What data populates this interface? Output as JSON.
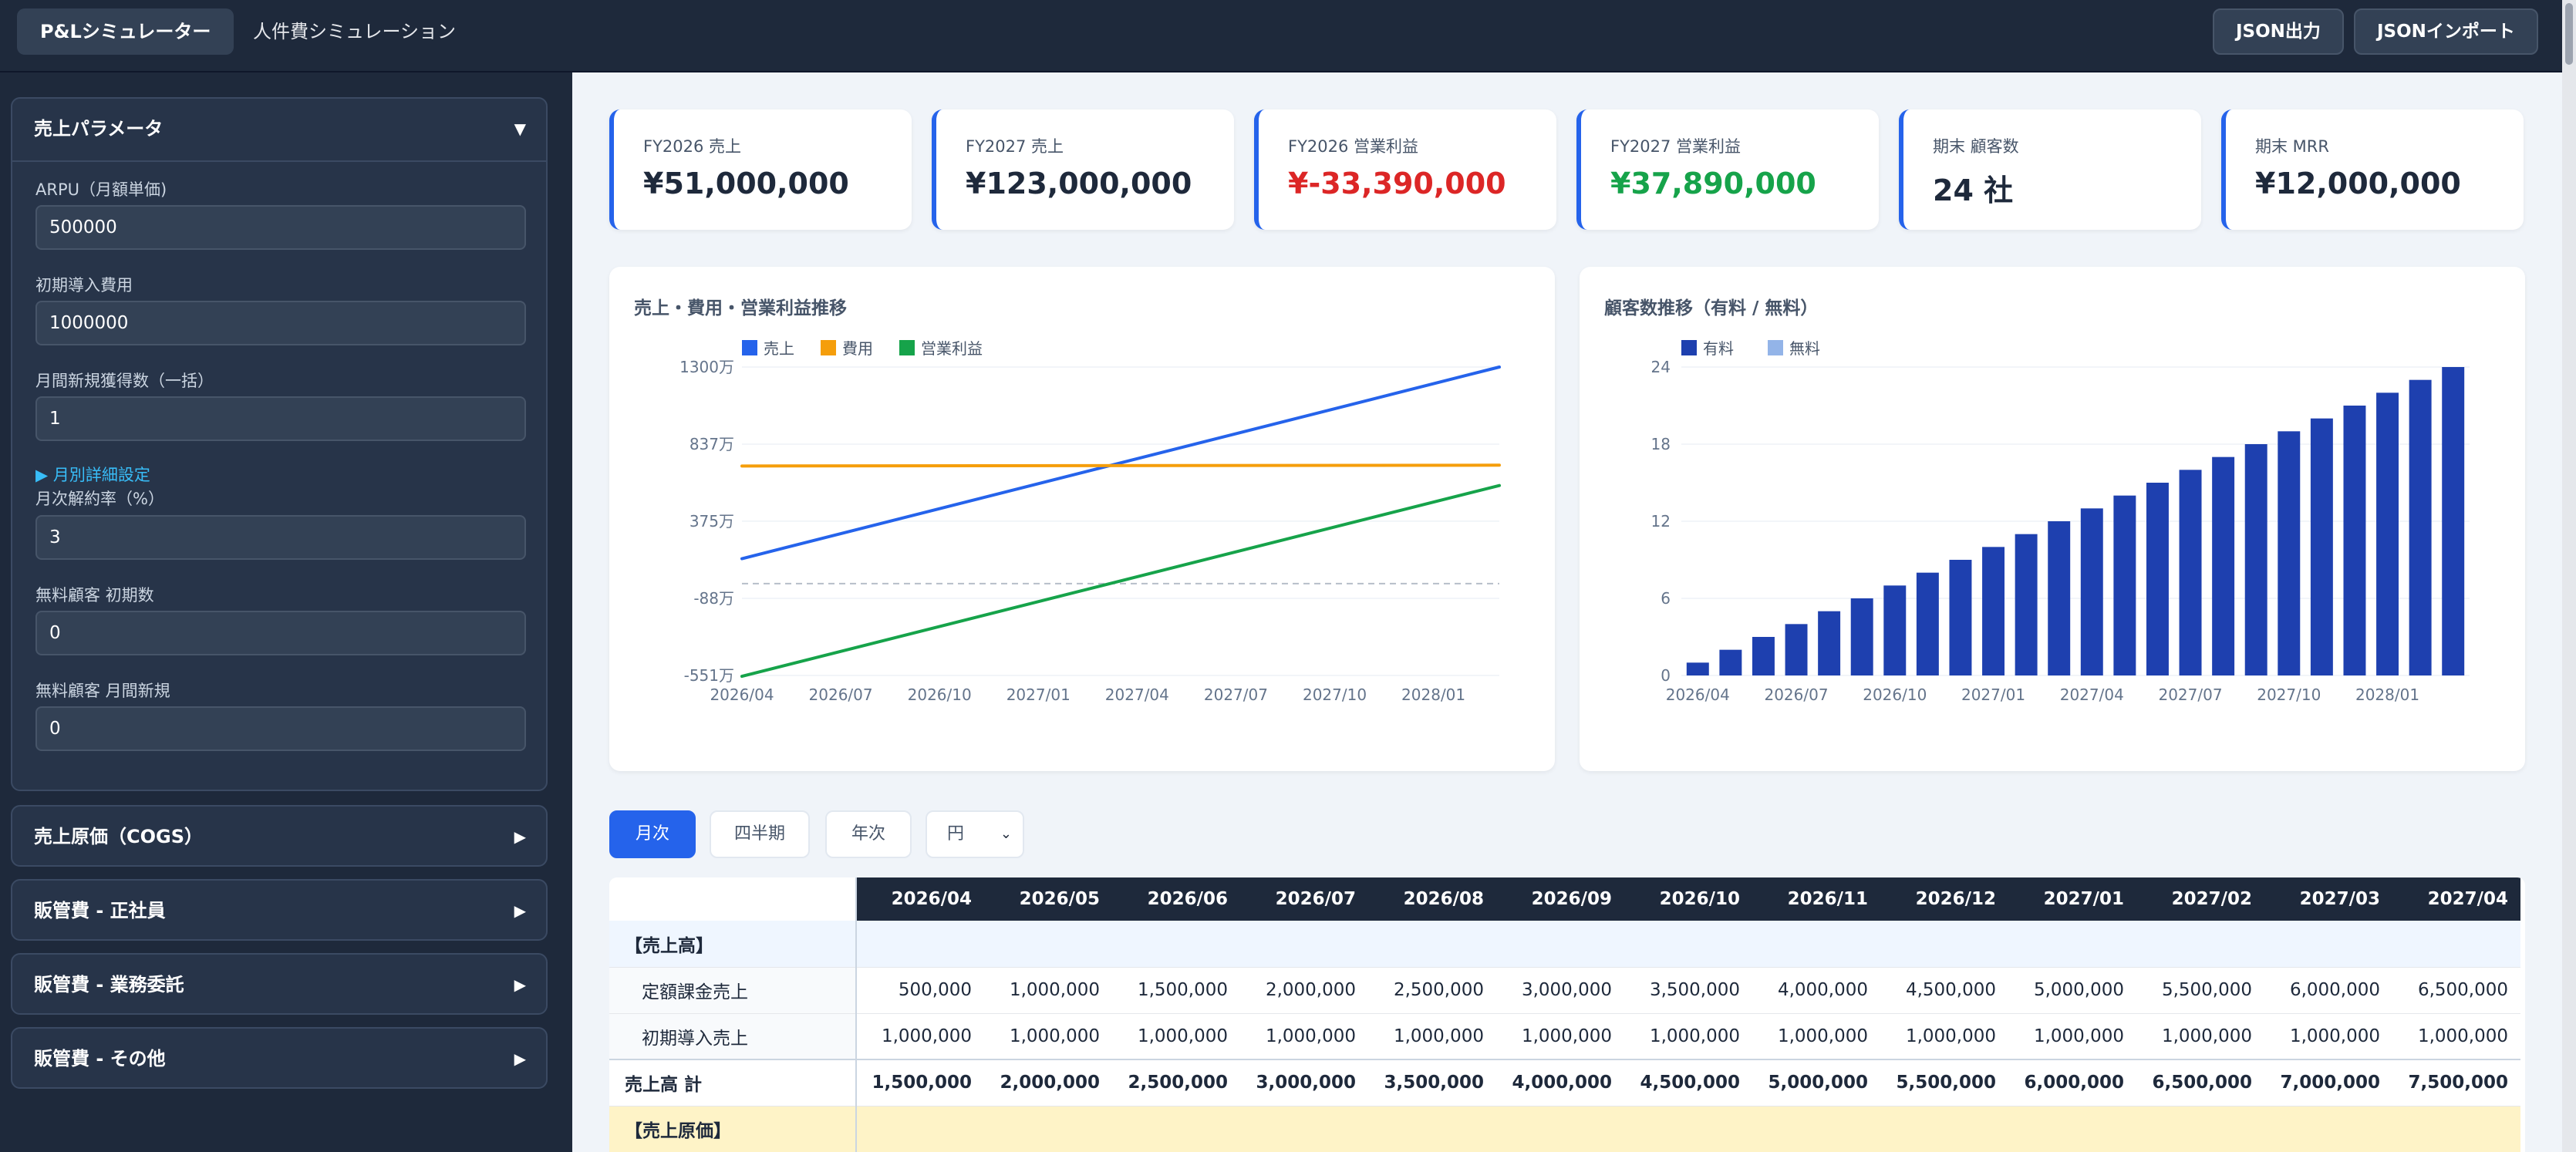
{
  "topbar": {
    "tabs": [
      "P&Lシミュレーター",
      "人件費シミュレーション"
    ],
    "export_label": "JSON出力",
    "import_label": "JSONインポート"
  },
  "sidebar": {
    "revenue": {
      "title": "売上パラメータ",
      "arrow": "▼",
      "fields": [
        {
          "label": "ARPU（月額単価)",
          "value": "500000"
        },
        {
          "label": "初期導入費用",
          "value": "1000000"
        },
        {
          "label": "月間新規獲得数（一括）",
          "value": "1"
        }
      ],
      "monthly_link": "▶ 月別詳細設定",
      "fields2": [
        {
          "label": "月次解約率（%）",
          "value": "3"
        },
        {
          "label": "無料顧客 初期数",
          "value": "0"
        },
        {
          "label": "無料顧客 月間新規",
          "value": "0"
        }
      ]
    },
    "collapsed": [
      {
        "title": "売上原価（COGS）",
        "arrow": "▶"
      },
      {
        "title": "販管費 - 正社員",
        "arrow": "▶"
      },
      {
        "title": "販管費 - 業務委託",
        "arrow": "▶"
      },
      {
        "title": "販管費 - その他",
        "arrow": "▶"
      }
    ]
  },
  "kpis": [
    {
      "label": "FY2026 売上",
      "value": "¥51,000,000",
      "color": "#1e293b"
    },
    {
      "label": "FY2027 売上",
      "value": "¥123,000,000",
      "color": "#1e293b"
    },
    {
      "label": "FY2026 営業利益",
      "value": "¥-33,390,000",
      "color": "#dc2626"
    },
    {
      "label": "FY2027 営業利益",
      "value": "¥37,890,000",
      "color": "#16a34a"
    },
    {
      "label": "期末 顧客数",
      "value": "24 社",
      "color": "#1e293b"
    },
    {
      "label": "期末 MRR",
      "value": "¥12,000,000",
      "color": "#1e293b"
    }
  ],
  "chart_data": [
    {
      "type": "line",
      "title": "売上・費用・営業利益推移",
      "x_ticks": [
        "2026/04",
        "2026/07",
        "2026/10",
        "2027/01",
        "2027/04",
        "2027/07",
        "2027/10",
        "2028/01"
      ],
      "y_ticks": [
        "1300万",
        "837万",
        "375万",
        "-88万",
        "-551万"
      ],
      "y_tick_values": [
        1300,
        837,
        375,
        -88,
        -551
      ],
      "ylim": [
        -551,
        1300
      ],
      "x_count": 24,
      "zero_line": true,
      "legend_position": "top-left",
      "series": [
        {
          "name": "売上",
          "color": "#2563eb",
          "start": 150,
          "end": 1300
        },
        {
          "name": "費用",
          "color": "#f59e0b",
          "start": 706,
          "end": 711
        },
        {
          "name": "営業利益",
          "color": "#16a34a",
          "start": -556,
          "end": 589
        }
      ]
    },
    {
      "type": "bar",
      "title": "顧客数推移（有料 / 無料）",
      "x_ticks": [
        "2026/04",
        "2026/07",
        "2026/10",
        "2027/01",
        "2027/04",
        "2027/07",
        "2027/10",
        "2028/01"
      ],
      "y_ticks": [
        "24",
        "18",
        "12",
        "6",
        "0"
      ],
      "ylim": [
        0,
        24
      ],
      "legend_position": "top-left",
      "series": [
        {
          "name": "有料",
          "color": "#1e40af",
          "values": [
            1,
            2,
            3,
            4,
            5,
            6,
            7,
            8,
            9,
            10,
            11,
            12,
            13,
            14,
            15,
            16,
            17,
            18,
            19,
            20,
            21,
            22,
            23,
            24
          ]
        },
        {
          "name": "無料",
          "color": "#93b4e8",
          "values": [
            0,
            0,
            0,
            0,
            0,
            0,
            0,
            0,
            0,
            0,
            0,
            0,
            0,
            0,
            0,
            0,
            0,
            0,
            0,
            0,
            0,
            0,
            0,
            0
          ]
        }
      ]
    }
  ],
  "view_controls": {
    "buttons": [
      "月次",
      "四半期",
      "年次"
    ],
    "active": "月次",
    "unit_select": "円"
  },
  "table": {
    "columns": [
      "2026/04",
      "2026/05",
      "2026/06",
      "2026/07",
      "2026/08",
      "2026/09",
      "2026/10",
      "2026/11",
      "2026/12",
      "2027/01",
      "2027/02",
      "2027/03",
      "2027/04"
    ],
    "rows": [
      {
        "kind": "sect",
        "label": "【売上高】",
        "values": []
      },
      {
        "kind": "sub",
        "label": "定額課金売上",
        "values": [
          "500,000",
          "1,000,000",
          "1,500,000",
          "2,000,000",
          "2,500,000",
          "3,000,000",
          "3,500,000",
          "4,000,000",
          "4,500,000",
          "5,000,000",
          "5,500,000",
          "6,000,000",
          "6,500,000"
        ]
      },
      {
        "kind": "sub",
        "label": "初期導入売上",
        "values": [
          "1,000,000",
          "1,000,000",
          "1,000,000",
          "1,000,000",
          "1,000,000",
          "1,000,000",
          "1,000,000",
          "1,000,000",
          "1,000,000",
          "1,000,000",
          "1,000,000",
          "1,000,000",
          "1,000,000"
        ]
      },
      {
        "kind": "tot",
        "label": "売上高 計",
        "values": [
          "1,500,000",
          "2,000,000",
          "2,500,000",
          "3,000,000",
          "3,500,000",
          "4,000,000",
          "4,500,000",
          "5,000,000",
          "5,500,000",
          "6,000,000",
          "6,500,000",
          "7,000,000",
          "7,500,000"
        ]
      },
      {
        "kind": "cogs",
        "label": "【売上原価】",
        "values": []
      }
    ]
  }
}
